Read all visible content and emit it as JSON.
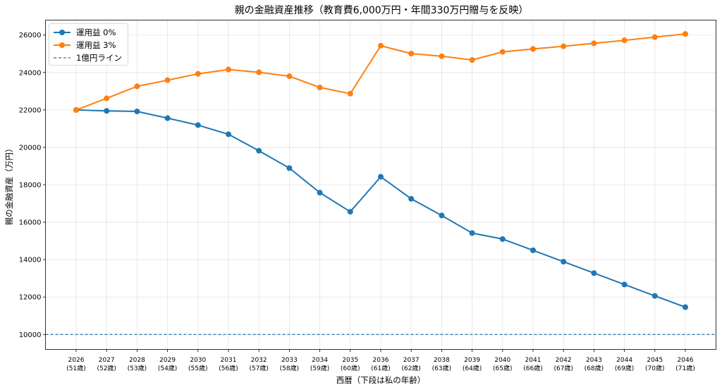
{
  "chart_data": {
    "type": "line",
    "title": "親の金融資産推移（教育費6,000万円・年間330万円贈与を反映）",
    "xlabel": "西暦（下段は私の年齢）",
    "ylabel": "親の金融資産（万円）",
    "categories": [
      "2026",
      "2027",
      "2028",
      "2029",
      "2030",
      "2031",
      "2032",
      "2033",
      "2034",
      "2035",
      "2036",
      "2037",
      "2038",
      "2039",
      "2040",
      "2041",
      "2042",
      "2043",
      "2044",
      "2045",
      "2046"
    ],
    "categories_sub": [
      "(51歳)",
      "(52歳)",
      "(53歳)",
      "(54歳)",
      "(55歳)",
      "(56歳)",
      "(57歳)",
      "(58歳)",
      "(59歳)",
      "(60歳)",
      "(61歳)",
      "(62歳)",
      "(63歳)",
      "(64歳)",
      "(65歳)",
      "(66歳)",
      "(67歳)",
      "(68歳)",
      "(69歳)",
      "(70歳)",
      "(71歳)"
    ],
    "ylim": [
      9200,
      26800
    ],
    "yticks": [
      10000,
      12000,
      14000,
      16000,
      18000,
      20000,
      22000,
      24000,
      26000
    ],
    "grid": true,
    "legend_position": "top-left",
    "series": [
      {
        "name": "運用益 0%",
        "color": "#1f77b4",
        "values": [
          22000,
          21950,
          21920,
          21560,
          21190,
          20700,
          19820,
          18890,
          17580,
          16560,
          18430,
          17250,
          16360,
          15420,
          15100,
          14500,
          13890,
          13280,
          12670,
          12060,
          11460
        ]
      },
      {
        "name": "運用益 3%",
        "color": "#ff7f0e",
        "values": [
          22000,
          22620,
          23260,
          23590,
          23930,
          24160,
          24010,
          23800,
          23200,
          22870,
          25430,
          25010,
          24870,
          24670,
          25100,
          25260,
          25400,
          25560,
          25720,
          25890,
          26060
        ]
      }
    ],
    "reference_lines": [
      {
        "name": "1億円ライン",
        "value": 10000,
        "color": "#1f77b4",
        "style": "dashed"
      }
    ]
  }
}
